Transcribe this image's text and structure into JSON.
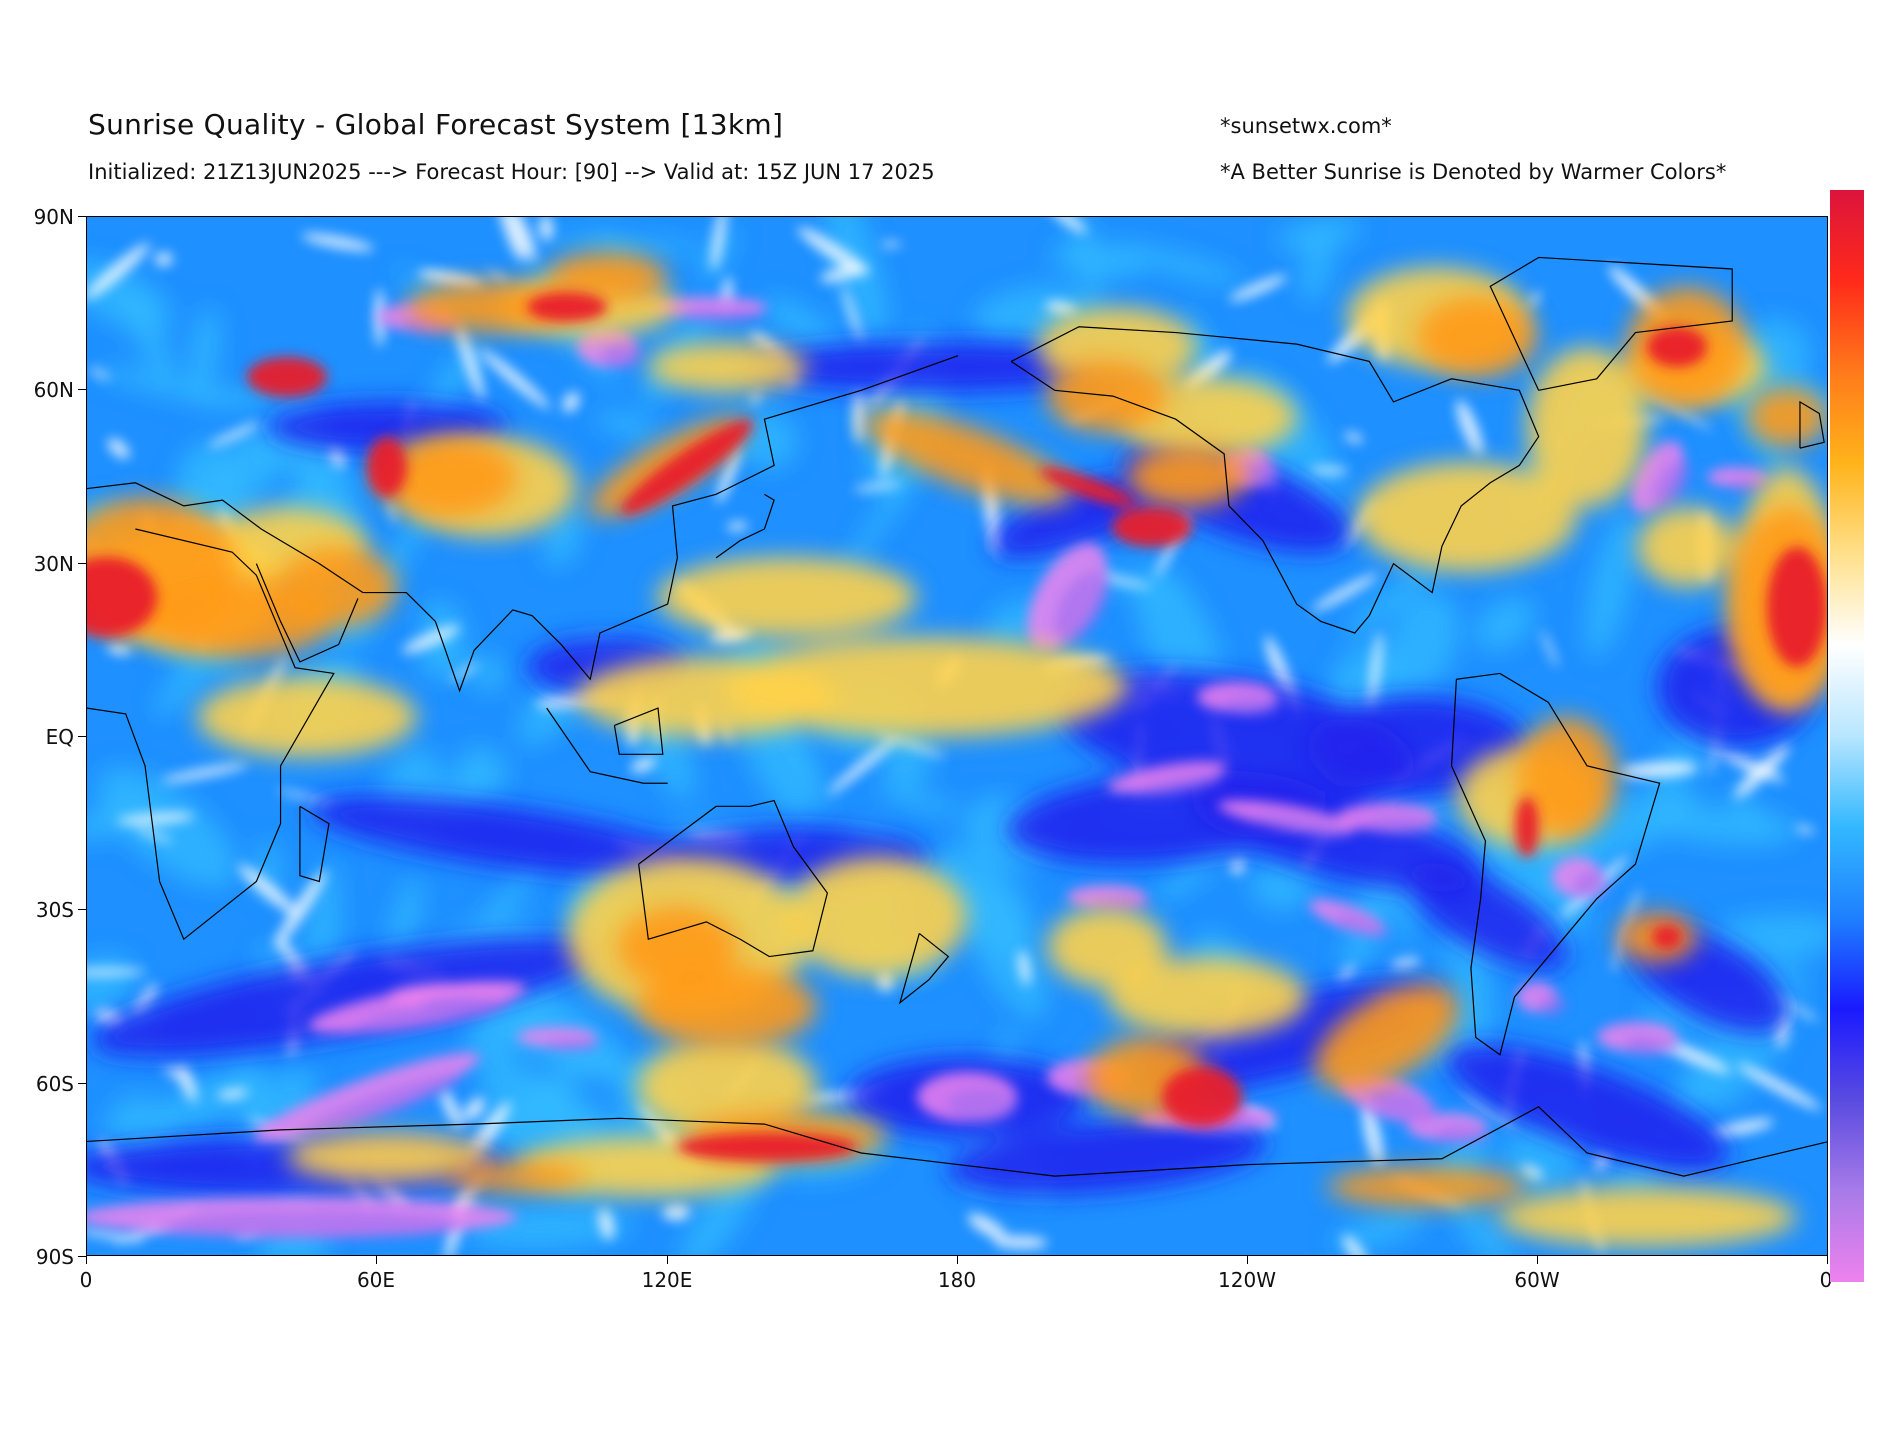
{
  "header": {
    "title": "Sunrise Quality - Global Forecast System [13km]",
    "subtitle": "Initialized: 21Z13JUN2025 ---> Forecast Hour: [90] --> Valid at: 15Z JUN 17 2025",
    "site": "*sunsetwx.com*",
    "note": "*A Better Sunrise is Denoted by Warmer Colors*"
  },
  "axes": {
    "lat_labels": [
      "90N",
      "60N",
      "30N",
      "EQ",
      "30S",
      "60S",
      "90S"
    ],
    "lon_labels": [
      "0",
      "60E",
      "120E",
      "180",
      "120W",
      "60W",
      "0"
    ]
  },
  "colors": {
    "ocean_base": "#1e90ff",
    "light_blue": "#33bbff",
    "white": "#ffffff",
    "yellow": "#ffd24a",
    "orange": "#ff9a1a",
    "red": "#e8202a",
    "dark_blue": "#2222ee",
    "violet": "#9b6cf0",
    "pink": "#ee82ee",
    "coast": "#000000"
  },
  "colorbar": {
    "stops": [
      "#dc143c",
      "#ff2a1a",
      "#ff7a1a",
      "#ffb31a",
      "#ffe08a",
      "#ffffff",
      "#b8e6ff",
      "#33b8ff",
      "#1e80ff",
      "#1a1aff",
      "#5a4be0",
      "#a77be8",
      "#ee82ee"
    ]
  }
}
